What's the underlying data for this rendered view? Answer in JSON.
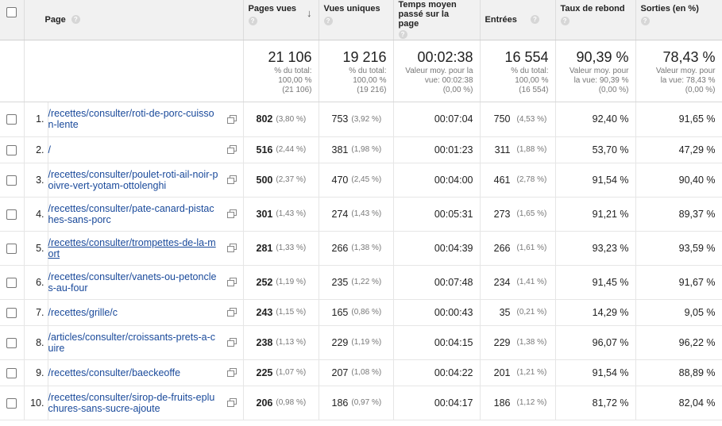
{
  "columns": {
    "page": "Page",
    "pageviews": "Pages vues",
    "unique": "Vues uniques",
    "avg_time": "Temps moyen passé sur la page",
    "entries": "Entrées",
    "bounce": "Taux de rebond",
    "exits": "Sorties (en %)"
  },
  "help_glyph": "?",
  "sort_glyph": "↓",
  "totals": {
    "pageviews": {
      "value": "21 106",
      "line1": "% du total:",
      "line2": "100,00 %",
      "line3": "(21 106)"
    },
    "unique": {
      "value": "19 216",
      "line1": "% du total:",
      "line2": "100,00 %",
      "line3": "(19 216)"
    },
    "avg_time": {
      "value": "00:02:38",
      "line1": "Valeur moy. pour la",
      "line2": "vue: 00:02:38",
      "line3": "(0,00 %)"
    },
    "entries": {
      "value": "16 554",
      "line1": "% du total:",
      "line2": "100,00 %",
      "line3": "(16 554)"
    },
    "bounce": {
      "value": "90,39 %",
      "line1": "Valeur moy. pour",
      "line2": "la vue: 90,39 %",
      "line3": "(0,00 %)"
    },
    "exits": {
      "value": "78,43 %",
      "line1": "Valeur moy. pour",
      "line2": "la vue: 78,43 %",
      "line3": "(0,00 %)"
    }
  },
  "rows": [
    {
      "num": "1.",
      "page": "/recettes/consulter/roti-de-porc-cuisson-lente",
      "pageviews": "802",
      "pageviews_pct": "(3,80 %)",
      "unique": "753",
      "unique_pct": "(3,92 %)",
      "avg_time": "00:07:04",
      "entries": "750",
      "entries_pct": "(4,53 %)",
      "bounce": "92,40 %",
      "exits": "91,65 %"
    },
    {
      "num": "2.",
      "page": "/",
      "pageviews": "516",
      "pageviews_pct": "(2,44 %)",
      "unique": "381",
      "unique_pct": "(1,98 %)",
      "avg_time": "00:01:23",
      "entries": "311",
      "entries_pct": "(1,88 %)",
      "bounce": "53,70 %",
      "exits": "47,29 %"
    },
    {
      "num": "3.",
      "page": "/recettes/consulter/poulet-roti-ail-noir-poivre-vert-yotam-ottolenghi",
      "pageviews": "500",
      "pageviews_pct": "(2,37 %)",
      "unique": "470",
      "unique_pct": "(2,45 %)",
      "avg_time": "00:04:00",
      "entries": "461",
      "entries_pct": "(2,78 %)",
      "bounce": "91,54 %",
      "exits": "90,40 %"
    },
    {
      "num": "4.",
      "page": "/recettes/consulter/pate-canard-pistaches-sans-porc",
      "pageviews": "301",
      "pageviews_pct": "(1,43 %)",
      "unique": "274",
      "unique_pct": "(1,43 %)",
      "avg_time": "00:05:31",
      "entries": "273",
      "entries_pct": "(1,65 %)",
      "bounce": "91,21 %",
      "exits": "89,37 %"
    },
    {
      "num": "5.",
      "page": "/recettes/consulter/trompettes-de-la-mort",
      "pageviews": "281",
      "pageviews_pct": "(1,33 %)",
      "unique": "266",
      "unique_pct": "(1,38 %)",
      "avg_time": "00:04:39",
      "entries": "266",
      "entries_pct": "(1,61 %)",
      "bounce": "93,23 %",
      "exits": "93,59 %"
    },
    {
      "num": "6.",
      "page": "/recettes/consulter/vanets-ou-petoncles-au-four",
      "pageviews": "252",
      "pageviews_pct": "(1,19 %)",
      "unique": "235",
      "unique_pct": "(1,22 %)",
      "avg_time": "00:07:48",
      "entries": "234",
      "entries_pct": "(1,41 %)",
      "bounce": "91,45 %",
      "exits": "91,67 %"
    },
    {
      "num": "7.",
      "page": "/recettes/grille/c",
      "pageviews": "243",
      "pageviews_pct": "(1,15 %)",
      "unique": "165",
      "unique_pct": "(0,86 %)",
      "avg_time": "00:00:43",
      "entries": "35",
      "entries_pct": "(0,21 %)",
      "bounce": "14,29 %",
      "exits": "9,05 %"
    },
    {
      "num": "8.",
      "page": "/articles/consulter/croissants-prets-a-cuire",
      "pageviews": "238",
      "pageviews_pct": "(1,13 %)",
      "unique": "229",
      "unique_pct": "(1,19 %)",
      "avg_time": "00:04:15",
      "entries": "229",
      "entries_pct": "(1,38 %)",
      "bounce": "96,07 %",
      "exits": "96,22 %"
    },
    {
      "num": "9.",
      "page": "/recettes/consulter/baeckeoffe",
      "pageviews": "225",
      "pageviews_pct": "(1,07 %)",
      "unique": "207",
      "unique_pct": "(1,08 %)",
      "avg_time": "00:04:22",
      "entries": "201",
      "entries_pct": "(1,21 %)",
      "bounce": "91,54 %",
      "exits": "88,89 %"
    },
    {
      "num": "10.",
      "page": "/recettes/consulter/sirop-de-fruits-epluchures-sans-sucre-ajoute",
      "pageviews": "206",
      "pageviews_pct": "(0,98 %)",
      "unique": "186",
      "unique_pct": "(0,97 %)",
      "avg_time": "00:04:17",
      "entries": "186",
      "entries_pct": "(1,12 %)",
      "bounce": "81,72 %",
      "exits": "82,04 %"
    }
  ]
}
